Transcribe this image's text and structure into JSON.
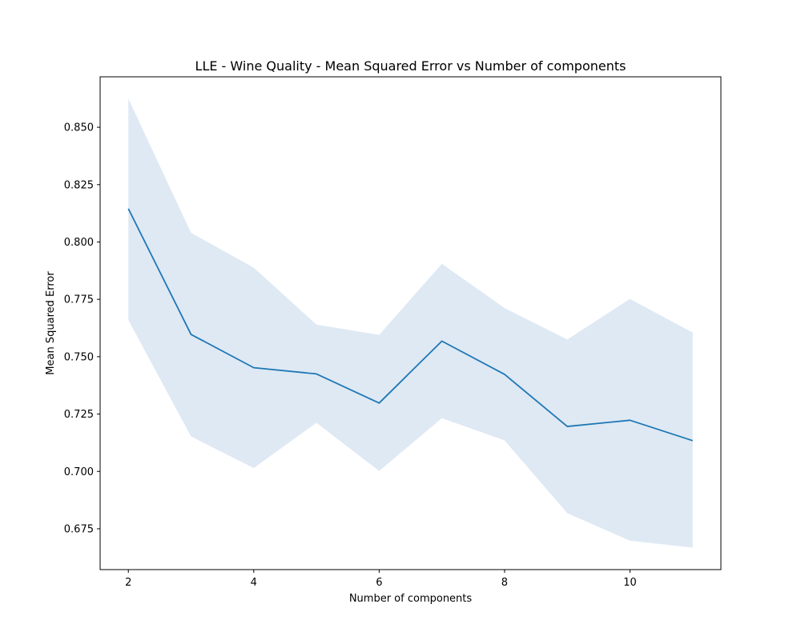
{
  "chart_data": {
    "type": "line",
    "title": "LLE - Wine Quality - Mean Squared Error vs Number of components",
    "xlabel": "Number of components",
    "ylabel": "Mean Squared Error",
    "x": [
      2,
      3,
      4,
      5,
      6,
      7,
      8,
      9,
      10,
      11
    ],
    "series": [
      {
        "values": [
          0.8145,
          0.7597,
          0.7452,
          0.7425,
          0.7298,
          0.7568,
          0.7423,
          0.7196,
          0.7223,
          0.7134
        ],
        "band_upper": [
          0.8625,
          0.804,
          0.7888,
          0.764,
          0.7595,
          0.7905,
          0.7712,
          0.7575,
          0.7752,
          0.7605
        ],
        "band_lower": [
          0.766,
          0.7152,
          0.7015,
          0.7212,
          0.7002,
          0.7232,
          0.7135,
          0.6818,
          0.6698,
          0.6668
        ],
        "color": "#1f77b4",
        "band_color": "#dee9f4"
      }
    ],
    "xlim": [
      1.55,
      11.45
    ],
    "ylim": [
      0.6572,
      0.872
    ],
    "xticks": [
      2,
      4,
      6,
      8,
      10
    ],
    "xtick_labels": [
      "2",
      "4",
      "6",
      "8",
      "10"
    ],
    "yticks": [
      0.675,
      0.7,
      0.725,
      0.75,
      0.775,
      0.8,
      0.825,
      0.85
    ],
    "ytick_labels": [
      "0.675",
      "0.700",
      "0.725",
      "0.750",
      "0.775",
      "0.800",
      "0.825",
      "0.850"
    ],
    "grid": false,
    "legend": "none"
  }
}
